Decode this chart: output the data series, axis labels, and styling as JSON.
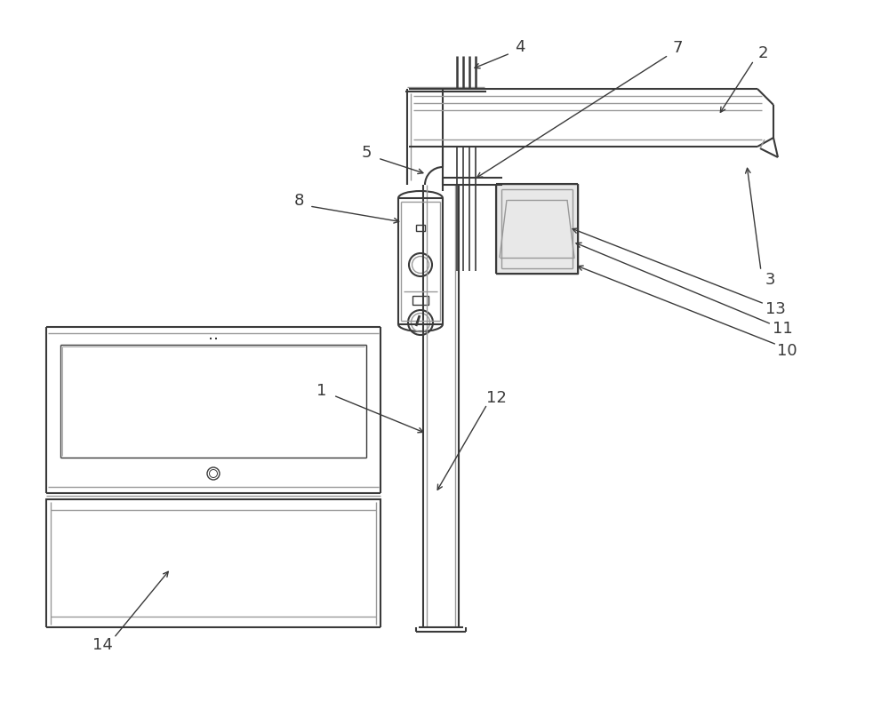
{
  "bg_color": "#ffffff",
  "lc": "#3a3a3a",
  "llc": "#999999",
  "fig_width": 10.0,
  "fig_height": 7.98,
  "dpi": 100
}
